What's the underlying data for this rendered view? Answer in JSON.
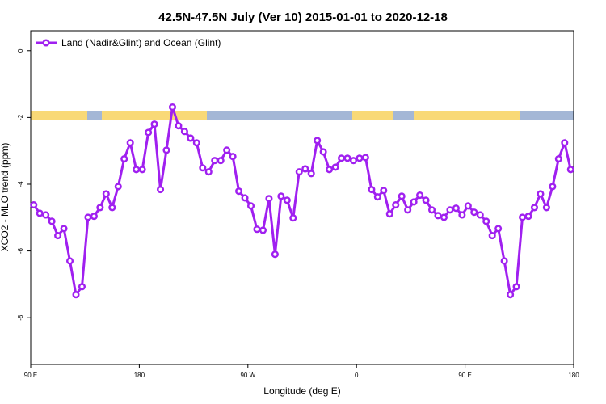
{
  "chart_data": {
    "type": "line",
    "title": "42.5N-47.5N July (Ver 10)   2015-01-01 to 2020-12-18",
    "x_label": "Longitude (deg E)",
    "y_label": "XCO2 - MLO trend (ppm)",
    "xlim": [
      90,
      540
    ],
    "ylim": [
      0.6,
      -9.4
    ],
    "xticks": [
      {
        "value": 90,
        "label": "90 E"
      },
      180,
      {
        "value": 270,
        "label": "90 W"
      },
      {
        "value": 360,
        "label": "0"
      },
      {
        "value": 450,
        "label": "90 E"
      },
      {
        "value": 540,
        "label": "180"
      }
    ],
    "yticks": [
      0,
      -2,
      -4,
      -6,
      -8
    ],
    "legend": "top-left",
    "x": [
      92.5,
      97.5,
      102.5,
      107.5,
      112.5,
      117.5,
      122.5,
      127.5,
      132.5,
      137.5,
      142.5,
      147.5,
      152.5,
      157.5,
      162.5,
      167.5,
      172.5,
      177.5,
      182.5,
      187.5,
      192.5,
      197.5,
      202.5,
      207.5,
      212.5,
      217.5,
      222.5,
      227.5,
      232.5,
      237.5,
      242.5,
      247.5,
      252.5,
      257.5,
      262.5,
      267.5,
      272.5,
      277.5,
      282.5,
      287.5,
      292.5,
      297.5,
      302.5,
      307.5,
      312.5,
      317.5,
      322.5,
      327.5,
      332.5,
      337.5,
      342.5,
      347.5,
      352.5,
      357.5,
      362.5,
      367.5,
      372.5,
      377.5,
      382.5,
      387.5,
      392.5,
      397.5,
      402.5,
      407.5,
      412.5,
      417.5,
      422.5,
      427.5,
      432.5,
      437.5,
      442.5,
      447.5,
      452.5,
      457.5,
      462.5,
      467.5,
      472.5,
      477.5,
      482.5,
      487.5,
      492.5,
      497.5,
      502.5,
      507.5,
      512.5,
      517.5,
      522.5,
      527.5,
      532.5,
      537.5
    ],
    "series": [
      {
        "name": "Land (Nadir&Glint) and Ocean (Glint)",
        "color": "#a020f0",
        "values": [
          -4.62,
          -4.87,
          -4.92,
          -5.11,
          -5.54,
          -5.33,
          -6.3,
          -7.31,
          -7.07,
          -4.99,
          -4.96,
          -4.7,
          -4.29,
          -4.7,
          -4.07,
          -3.24,
          -2.76,
          -3.56,
          -3.56,
          -2.45,
          -2.2,
          -4.16,
          -2.98,
          -1.69,
          -2.25,
          -2.42,
          -2.62,
          -2.76,
          -3.51,
          -3.63,
          -3.29,
          -3.29,
          -2.98,
          -3.17,
          -4.21,
          -4.41,
          -4.65,
          -5.35,
          -5.38,
          -4.43,
          -6.1,
          -4.36,
          -4.48,
          -5.01,
          -3.63,
          -3.54,
          -3.68,
          -2.69,
          -3.03,
          -3.56,
          -3.49,
          -3.22,
          -3.22,
          -3.29,
          -3.22,
          -3.2,
          -4.16,
          -4.38,
          -4.19,
          -4.89,
          -4.62,
          -4.36,
          -4.77,
          -4.53,
          -4.33,
          -4.48,
          -4.77,
          -4.94,
          -4.99,
          -4.77,
          -4.72,
          -4.92,
          -4.65,
          -4.84,
          -4.92,
          -5.11,
          -5.54,
          -5.33,
          -6.3,
          -7.31,
          -7.07,
          -4.99,
          -4.96,
          -4.7,
          -4.29,
          -4.7,
          -4.07,
          -3.24,
          -2.76,
          -3.56
        ]
      }
    ]
  }
}
